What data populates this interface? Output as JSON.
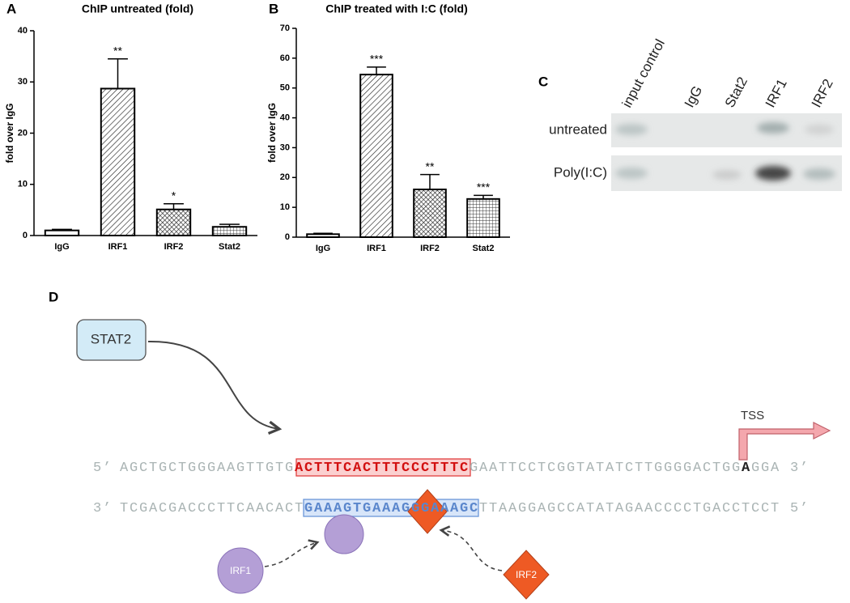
{
  "chart_data": [
    {
      "type": "bar",
      "panel_label": "A",
      "title": "ChIP untreated (fold)",
      "y_label": "fold over IgG",
      "categories": [
        "IgG",
        "IRF1",
        "IRF2",
        "Stat2"
      ],
      "values": [
        1,
        28.7,
        5.1,
        1.7
      ],
      "errors": [
        0.2,
        5.8,
        1.1,
        0.5
      ],
      "annotations": [
        null,
        "**",
        "*",
        null
      ],
      "patterns": [
        "none",
        "diagonal",
        "crosshatch",
        "grid"
      ],
      "ylim": [
        0,
        40
      ],
      "yticks": [
        0,
        10,
        20,
        30,
        40
      ]
    },
    {
      "type": "bar",
      "panel_label": "B",
      "title": "ChIP treated with I:C (fold)",
      "y_label": "fold over IgG",
      "categories": [
        "IgG",
        "IRF1",
        "IRF2",
        "Stat2"
      ],
      "values": [
        1,
        54.5,
        16,
        12.8
      ],
      "errors": [
        0.3,
        2.5,
        5,
        1.2
      ],
      "annotations": [
        null,
        "***",
        "**",
        "***"
      ],
      "patterns": [
        "none",
        "diagonal",
        "crosshatch",
        "grid"
      ],
      "ylim": [
        0,
        70
      ],
      "yticks": [
        0,
        10,
        20,
        30,
        40,
        50,
        60,
        70
      ]
    }
  ],
  "gel": {
    "panel_label": "C",
    "lanes": [
      "input control",
      "IgG",
      "Stat2",
      "IRF1",
      "IRF2"
    ],
    "rows": [
      "untreated",
      "Poly(I:C)"
    ]
  },
  "diagram": {
    "panel_label": "D",
    "stat2": "STAT2",
    "tss": "TSS",
    "irf1": "IRF1",
    "irf2": "IRF2",
    "top_strand": [
      "5’ ",
      "AGCTGCTGGGAAGTTGTG",
      "ACTTTCACTTTCCCTTTC",
      "GAATTCCTCGGTATATCTTGGGGACTGG",
      "A",
      "GGA",
      " 3’"
    ],
    "bottom_strand": [
      "3’ ",
      "TCGACGACCCTTCAACACT",
      "GAAAGTGAAAGGGAAAGC",
      "TTAAGGAGCCATATAGAACCCCTGACCTCCT",
      " 5’"
    ]
  }
}
